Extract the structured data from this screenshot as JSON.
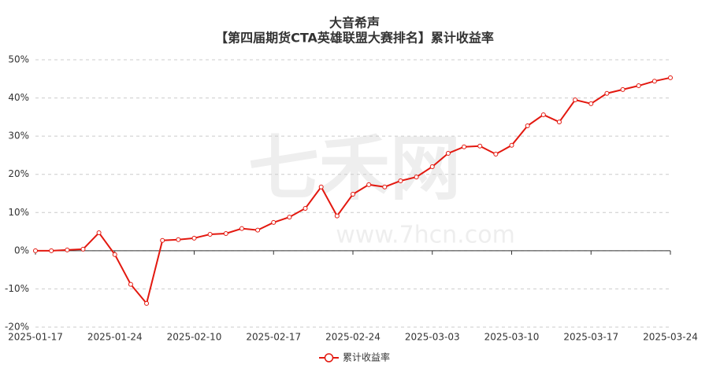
{
  "chart_data": {
    "type": "line",
    "title": "大音希声",
    "subtitle": "【第四届期货CTA英雄联盟大赛排名】累计收益率",
    "watermark": [
      "七禾网",
      "www.7hcn.com"
    ],
    "categories": [
      "2025-01-17",
      null,
      null,
      null,
      null,
      "2025-01-24",
      null,
      null,
      null,
      null,
      "2025-02-10",
      null,
      null,
      null,
      null,
      "2025-02-17",
      null,
      null,
      null,
      null,
      "2025-02-24",
      null,
      null,
      null,
      null,
      "2025-03-03",
      null,
      null,
      null,
      null,
      "2025-03-10",
      null,
      null,
      null,
      null,
      "2025-03-17",
      null,
      null,
      null,
      null,
      "2025-03-24"
    ],
    "series": [
      {
        "name": "累计收益率",
        "color": "#e3180f",
        "values": [
          0,
          0,
          0.2,
          0.4,
          4.7,
          -1.0,
          -8.8,
          -13.8,
          2.7,
          2.9,
          3.3,
          4.3,
          4.5,
          5.8,
          5.4,
          7.4,
          8.8,
          11.1,
          16.7,
          9.1,
          14.8,
          17.3,
          16.7,
          18.3,
          19.3,
          22.0,
          25.5,
          27.2,
          27.4,
          25.3,
          27.6,
          32.7,
          35.6,
          33.7,
          39.5,
          38.5,
          41.2,
          42.2,
          43.2,
          44.4,
          45.3
        ]
      }
    ],
    "ylim": [
      -20,
      50
    ],
    "yticks": [
      {
        "value": -20,
        "label": "-20%"
      },
      {
        "value": -10,
        "label": "-10%"
      },
      {
        "value": 0,
        "label": "0%"
      },
      {
        "value": 10,
        "label": "10%"
      },
      {
        "value": 20,
        "label": "20%"
      },
      {
        "value": 30,
        "label": "30%"
      },
      {
        "value": 40,
        "label": "40%"
      },
      {
        "value": 50,
        "label": "50%"
      }
    ],
    "grid": true,
    "legend": "bottom"
  }
}
